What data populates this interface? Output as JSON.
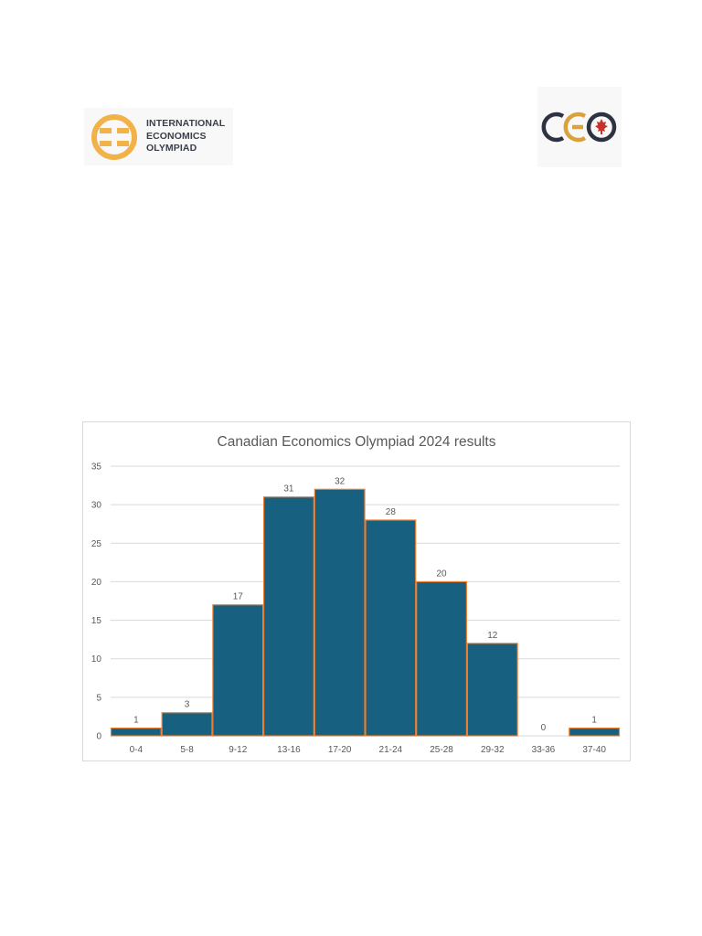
{
  "header": {
    "left_logo": {
      "name": "international-economics-olympiad-logo",
      "lines": [
        "INTERNATIONAL",
        "ECONOMICS",
        "OLYMPIAD"
      ],
      "color_primary": "#f2b24a",
      "color_text": "#3a3f4a"
    },
    "right_logo": {
      "name": "canadian-economics-olympiad-logo",
      "wordmark": "CEO",
      "color_dark": "#2d3340",
      "color_gold": "#d9a23a",
      "color_leaf": "#c7322a"
    }
  },
  "chart_data": {
    "type": "bar",
    "title": "Canadian Economics Olympiad 2024 results",
    "xlabel": "",
    "ylabel": "",
    "categories": [
      "0-4",
      "5-8",
      "9-12",
      "13-16",
      "17-20",
      "21-24",
      "25-28",
      "29-32",
      "33-36",
      "37-40"
    ],
    "values": [
      1,
      3,
      17,
      31,
      32,
      28,
      20,
      12,
      0,
      1
    ],
    "ylim": [
      0,
      35
    ],
    "yticks": [
      0,
      5,
      10,
      15,
      20,
      25,
      30,
      35
    ],
    "grid": true,
    "data_labels": true,
    "bar_color": "#17607f",
    "bar_edge_color": "#ed7d31"
  }
}
